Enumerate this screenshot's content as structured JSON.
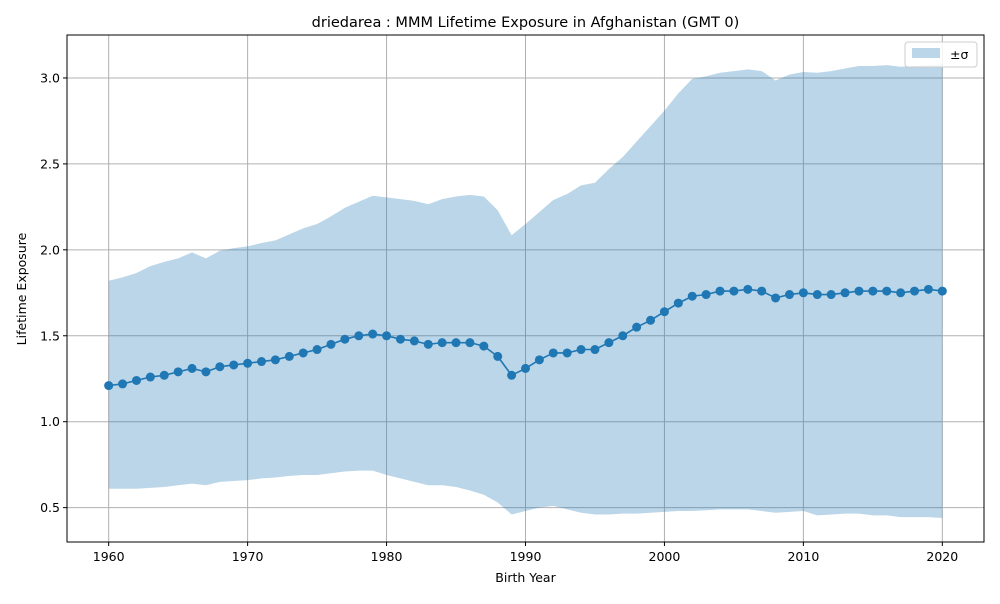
{
  "chart_data": {
    "type": "line",
    "title": "driedarea : MMM Lifetime Exposure in Afghanistan (GMT 0)",
    "xlabel": "Birth Year",
    "ylabel": "Lifetime Exposure",
    "xlim": [
      1957,
      2023
    ],
    "ylim": [
      0.3,
      3.25
    ],
    "xticks": [
      1960,
      1970,
      1980,
      1990,
      2000,
      2010,
      2020
    ],
    "yticks": [
      0.5,
      1.0,
      1.5,
      2.0,
      2.5,
      3.0
    ],
    "xtick_labels": [
      "1960",
      "1970",
      "1980",
      "1990",
      "2000",
      "2010",
      "2020"
    ],
    "ytick_labels": [
      "0.5",
      "1.0",
      "1.5",
      "2.0",
      "2.5",
      "3.0"
    ],
    "grid": true,
    "legend": {
      "position": "top-right",
      "entries": [
        "±σ"
      ]
    },
    "colors": {
      "line": "#1f77b4",
      "band": "#1f77b4",
      "band_opacity": 0.3,
      "grid": "#b0b0b0"
    },
    "x": [
      1960,
      1961,
      1962,
      1963,
      1964,
      1965,
      1966,
      1967,
      1968,
      1969,
      1970,
      1971,
      1972,
      1973,
      1974,
      1975,
      1976,
      1977,
      1978,
      1979,
      1980,
      1981,
      1982,
      1983,
      1984,
      1985,
      1986,
      1987,
      1988,
      1989,
      1990,
      1991,
      1992,
      1993,
      1994,
      1995,
      1996,
      1997,
      1998,
      1999,
      2000,
      2001,
      2002,
      2003,
      2004,
      2005,
      2006,
      2007,
      2008,
      2009,
      2010,
      2011,
      2012,
      2013,
      2014,
      2015,
      2016,
      2017,
      2018,
      2019,
      2020
    ],
    "series": [
      {
        "name": "mean",
        "values": [
          1.21,
          1.22,
          1.24,
          1.26,
          1.27,
          1.29,
          1.31,
          1.29,
          1.32,
          1.33,
          1.34,
          1.35,
          1.36,
          1.38,
          1.4,
          1.42,
          1.45,
          1.48,
          1.5,
          1.51,
          1.5,
          1.48,
          1.47,
          1.45,
          1.46,
          1.46,
          1.46,
          1.44,
          1.38,
          1.27,
          1.31,
          1.36,
          1.4,
          1.4,
          1.42,
          1.42,
          1.46,
          1.5,
          1.55,
          1.59,
          1.64,
          1.69,
          1.73,
          1.74,
          1.76,
          1.76,
          1.77,
          1.76,
          1.72,
          1.74,
          1.75,
          1.74,
          1.74,
          1.75,
          1.76,
          1.76,
          1.76,
          1.75,
          1.76,
          1.77,
          1.76
        ]
      },
      {
        "name": "±σ",
        "lower": [
          0.61,
          0.61,
          0.61,
          0.615,
          0.62,
          0.63,
          0.64,
          0.63,
          0.65,
          0.655,
          0.66,
          0.67,
          0.675,
          0.685,
          0.69,
          0.69,
          0.7,
          0.71,
          0.715,
          0.715,
          0.69,
          0.67,
          0.65,
          0.63,
          0.63,
          0.62,
          0.6,
          0.575,
          0.53,
          0.46,
          0.48,
          0.5,
          0.51,
          0.49,
          0.47,
          0.46,
          0.46,
          0.465,
          0.465,
          0.47,
          0.475,
          0.48,
          0.48,
          0.485,
          0.49,
          0.49,
          0.49,
          0.48,
          0.47,
          0.475,
          0.48,
          0.455,
          0.46,
          0.465,
          0.465,
          0.455,
          0.455,
          0.445,
          0.445,
          0.445,
          0.44
        ],
        "upper": [
          1.82,
          1.84,
          1.865,
          1.905,
          1.93,
          1.95,
          1.985,
          1.95,
          1.995,
          2.01,
          2.02,
          2.04,
          2.055,
          2.09,
          2.125,
          2.15,
          2.195,
          2.245,
          2.28,
          2.315,
          2.305,
          2.295,
          2.285,
          2.265,
          2.295,
          2.31,
          2.32,
          2.31,
          2.23,
          2.085,
          2.15,
          2.22,
          2.29,
          2.325,
          2.375,
          2.39,
          2.47,
          2.54,
          2.63,
          2.72,
          2.81,
          2.91,
          2.995,
          3.01,
          3.03,
          3.04,
          3.05,
          3.04,
          2.985,
          3.02,
          3.035,
          3.03,
          3.04,
          3.055,
          3.07,
          3.07,
          3.075,
          3.065,
          3.07,
          3.075,
          3.08
        ]
      }
    ]
  }
}
